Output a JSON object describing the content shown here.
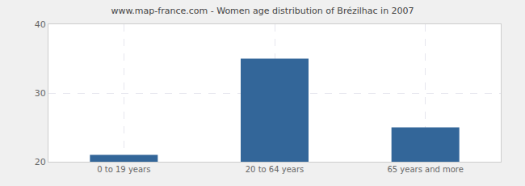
{
  "chart_data": {
    "type": "bar",
    "title": "www.map-france.com - Women age distribution of Brézilhac in 2007",
    "categories": [
      "0 to 19 years",
      "20 to 64 years",
      "65 years and more"
    ],
    "values": [
      21,
      35,
      25
    ],
    "color": "#336699",
    "ylim": [
      20,
      40
    ],
    "yticks": [
      20,
      30,
      40
    ],
    "grid": true
  }
}
